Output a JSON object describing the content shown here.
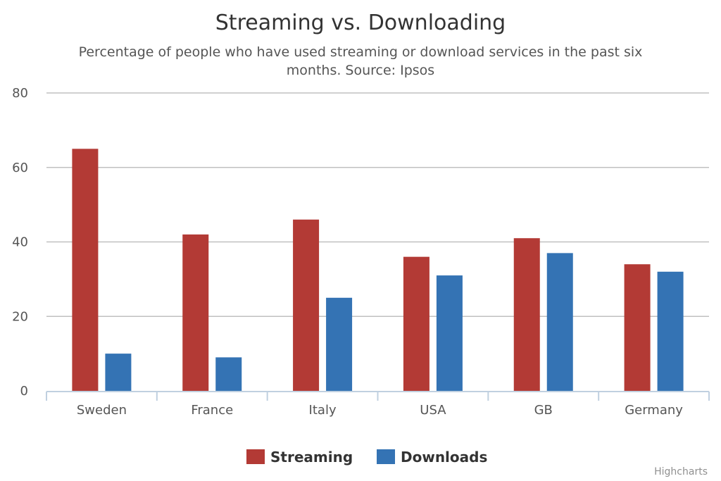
{
  "chart_data": {
    "type": "bar",
    "title": "Streaming vs. Downloading",
    "subtitle_lines": [
      "Percentage of people who have used streaming or download services in the past six",
      "months. Source: Ipsos"
    ],
    "categories": [
      "Sweden",
      "France",
      "Italy",
      "USA",
      "GB",
      "Germany"
    ],
    "series": [
      {
        "name": "Streaming",
        "color": "#b33a35",
        "values": [
          65,
          42,
          46,
          36,
          41,
          34
        ]
      },
      {
        "name": "Downloads",
        "color": "#3473b4",
        "values": [
          10,
          9,
          25,
          31,
          37,
          32
        ]
      }
    ],
    "ylim": [
      0,
      80
    ],
    "yticks": [
      "0",
      "20",
      "40",
      "60",
      "80"
    ],
    "grid": true,
    "legend_position": "bottom-center",
    "credits": "Highcharts"
  }
}
